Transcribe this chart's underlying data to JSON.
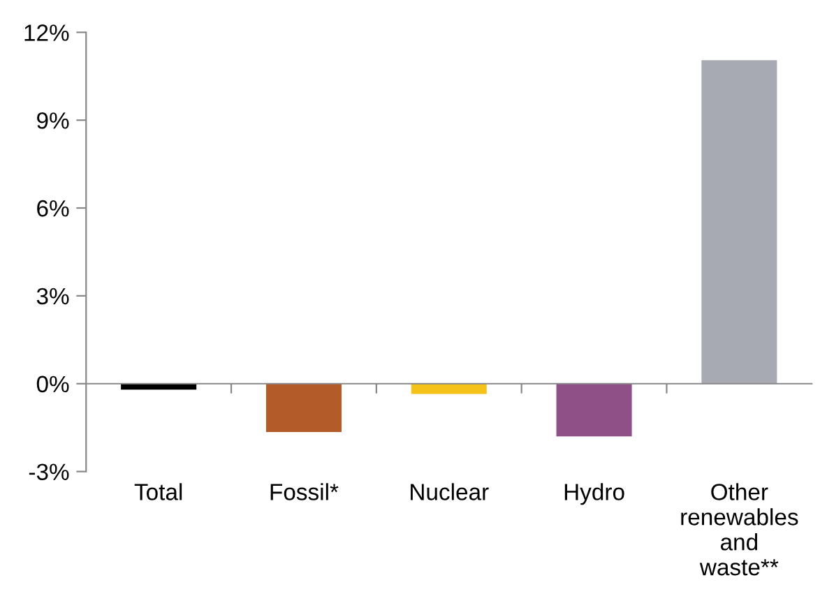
{
  "chart_data": {
    "type": "bar",
    "categories": [
      "Total",
      "Fossil*",
      "Nuclear",
      "Hydro",
      "Other renewables and waste**"
    ],
    "values": [
      -0.2,
      -1.65,
      -0.35,
      -1.8,
      11.05
    ],
    "colors": [
      "#000000",
      "#b35c2a",
      "#f5c21a",
      "#8e5087",
      "#a8aab3"
    ],
    "ylim": [
      -3,
      12
    ],
    "yticks": [
      {
        "value": -3,
        "label": "-3%"
      },
      {
        "value": 0,
        "label": "0%"
      },
      {
        "value": 3,
        "label": "3%"
      },
      {
        "value": 6,
        "label": "6%"
      },
      {
        "value": 9,
        "label": "9%"
      },
      {
        "value": 12,
        "label": "12%"
      }
    ],
    "legend": false
  }
}
